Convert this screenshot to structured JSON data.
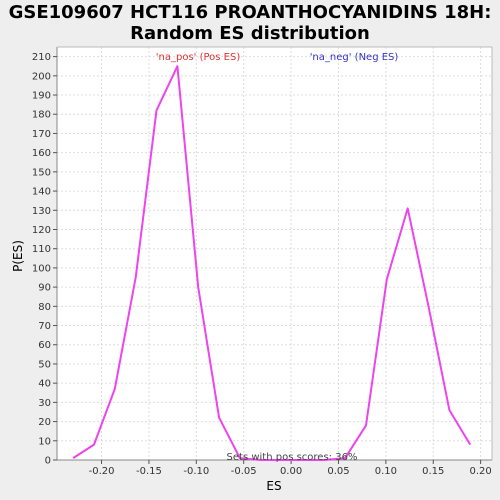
{
  "chart_data": {
    "type": "line",
    "title_line1": "GSE109607 HCT116 PROANTHOCYANIDINS 18H:",
    "title_line2": "Random ES distribution",
    "xlabel": "ES",
    "ylabel": "P(ES)",
    "xlim": [
      -0.247,
      0.212
    ],
    "ylim": [
      0,
      215
    ],
    "x_ticks": [
      -0.2,
      -0.15,
      -0.1,
      -0.05,
      0.0,
      0.05,
      0.1,
      0.15,
      0.2
    ],
    "x_tick_labels": [
      "-0.20",
      "-0.15",
      "-0.10",
      "-0.05",
      "0.00",
      "0.05",
      "0.10",
      "0.15",
      "0.20"
    ],
    "y_ticks": [
      0,
      10,
      20,
      30,
      40,
      50,
      60,
      70,
      80,
      90,
      100,
      110,
      120,
      130,
      140,
      150,
      160,
      170,
      180,
      190,
      200,
      210
    ],
    "grid": true,
    "series": [
      {
        "color": "#ee44ee",
        "x": [
          -0.23,
          -0.208,
          -0.186,
          -0.164,
          -0.142,
          -0.12,
          -0.098,
          -0.076,
          -0.054,
          -0.032,
          -0.01,
          0.012,
          0.035,
          0.057,
          0.079,
          0.101,
          0.123,
          0.145,
          0.167,
          0.189
        ],
        "y": [
          1,
          8,
          37,
          95,
          182,
          205,
          90,
          22,
          1,
          0,
          0,
          0,
          0,
          1,
          18,
          94,
          131,
          80,
          26,
          8
        ]
      }
    ],
    "annotations": {
      "pos_label": "'na_pos' (Pos ES)",
      "pos_color": "#dd3333",
      "neg_label": "'na_neg' (Neg ES)",
      "neg_color": "#3333cc",
      "note": "Sets with pos scores: 36%"
    },
    "colors": {
      "plot_background": "#ffffff",
      "page_background": "#eeeeee",
      "grid": "#dddddd"
    }
  }
}
